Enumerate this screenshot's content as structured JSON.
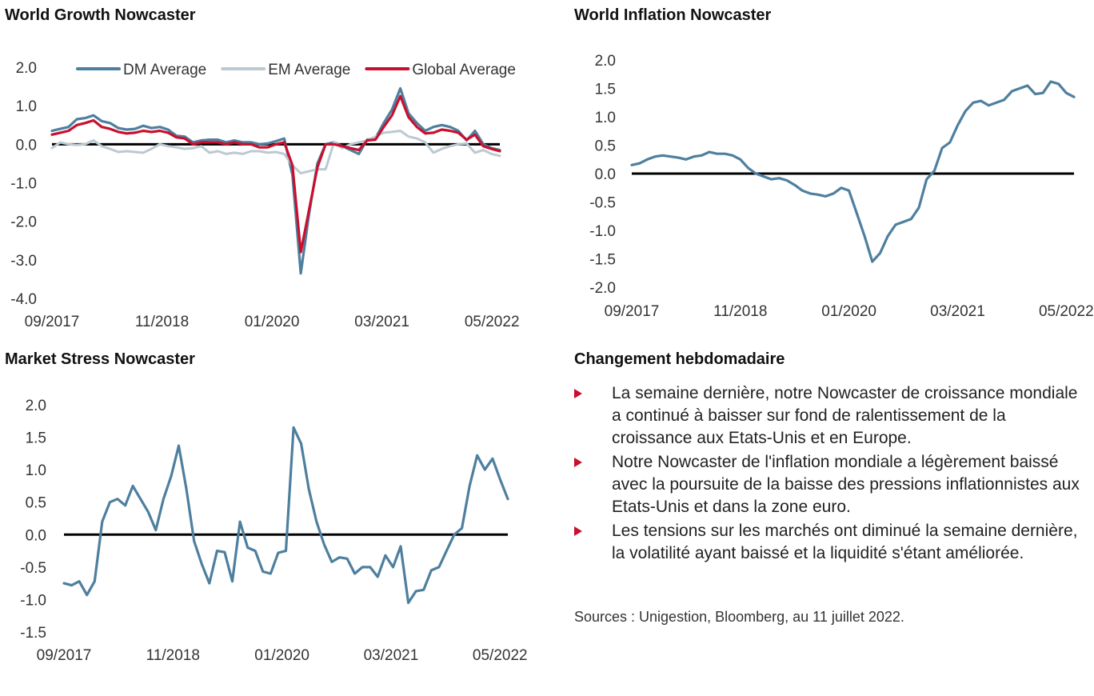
{
  "colors": {
    "dm": "#4e7f9e",
    "em": "#bcc9d0",
    "global": "#c8102e",
    "zero": "#000000",
    "bullet": "#c8102e"
  },
  "panels": {
    "growth": {
      "title": "World Growth Nowcaster"
    },
    "inflation": {
      "title": "World Inflation Nowcaster"
    },
    "stress": {
      "title": "Market Stress Nowcaster"
    },
    "commentary": {
      "title": "Changement hebdomadaire",
      "bullets": [
        "La semaine dernière, notre Nowcaster de croissance mondiale a continué à baisser sur fond de ralentissement de la croissance aux Etats-Unis et en Europe.",
        "Notre Nowcaster de l'inflation mondiale a légèrement baissé avec la poursuite de la baisse des pressions inflationnistes aux Etats-Unis et dans la zone euro.",
        "Les tensions sur les marchés ont diminué la semaine dernière, la volatilité ayant baissé et la liquidité s'étant améliorée."
      ],
      "sources": "Sources : Unigestion, Bloomberg, au 11 juillet 2022."
    }
  },
  "chart_data": [
    {
      "id": "growth",
      "type": "line",
      "title": "World Growth Nowcaster",
      "ylim": [
        -4.0,
        2.0
      ],
      "yticks": [
        "2.0",
        "1.0",
        "0.0",
        "-1.0",
        "-2.0",
        "-3.0",
        "-4.0"
      ],
      "ytick_values": [
        2,
        1,
        0,
        -1,
        -2,
        -3,
        -4
      ],
      "xticks": [
        "09/2017",
        "11/2018",
        "01/2020",
        "03/2021",
        "05/2022"
      ],
      "xtick_months": [
        0,
        14,
        28,
        42,
        56
      ],
      "x_range_months": [
        0,
        57
      ],
      "legend_position": "top",
      "zero_line": true,
      "series": [
        {
          "name": "DM Average",
          "color_key": "dm",
          "values": [
            0.35,
            0.4,
            0.45,
            0.65,
            0.68,
            0.75,
            0.6,
            0.55,
            0.42,
            0.38,
            0.4,
            0.48,
            0.42,
            0.45,
            0.38,
            0.22,
            0.2,
            0.05,
            0.1,
            0.12,
            0.12,
            0.05,
            0.1,
            0.05,
            0.05,
            0.0,
            0.02,
            0.08,
            0.15,
            -0.8,
            -3.35,
            -1.8,
            -0.5,
            0.0,
            0.05,
            -0.05,
            -0.15,
            -0.25,
            0.12,
            0.15,
            0.55,
            0.9,
            1.45,
            0.8,
            0.55,
            0.35,
            0.45,
            0.5,
            0.45,
            0.35,
            0.1,
            0.35,
            0.0,
            -0.1,
            -0.15
          ]
        },
        {
          "name": "EM Average",
          "color_key": "em",
          "values": [
            -0.1,
            0.05,
            0.0,
            -0.02,
            0.0,
            0.1,
            -0.05,
            -0.12,
            -0.2,
            -0.18,
            -0.2,
            -0.22,
            -0.12,
            0.0,
            -0.05,
            -0.08,
            -0.12,
            -0.1,
            -0.05,
            -0.22,
            -0.18,
            -0.25,
            -0.22,
            -0.25,
            -0.18,
            -0.18,
            -0.22,
            -0.2,
            -0.25,
            -0.55,
            -0.75,
            -0.7,
            -0.65,
            -0.65,
            0.05,
            -0.1,
            0.0,
            0.05,
            0.1,
            0.2,
            0.3,
            0.32,
            0.35,
            0.2,
            0.15,
            0.05,
            -0.22,
            -0.12,
            -0.05,
            0.0,
            0.02,
            -0.22,
            -0.15,
            -0.25,
            -0.3
          ]
        },
        {
          "name": "Global Average",
          "color_key": "global",
          "values": [
            0.25,
            0.3,
            0.35,
            0.5,
            0.55,
            0.62,
            0.45,
            0.4,
            0.32,
            0.28,
            0.3,
            0.35,
            0.32,
            0.35,
            0.3,
            0.18,
            0.15,
            0.0,
            0.05,
            0.05,
            0.05,
            0.0,
            0.05,
            0.0,
            0.0,
            -0.08,
            -0.08,
            0.0,
            0.05,
            -0.55,
            -2.8,
            -1.7,
            -0.6,
            0.0,
            0.0,
            -0.05,
            -0.1,
            -0.15,
            0.1,
            0.12,
            0.45,
            0.75,
            1.25,
            0.7,
            0.45,
            0.28,
            0.3,
            0.38,
            0.35,
            0.3,
            0.12,
            0.25,
            -0.05,
            -0.12,
            -0.18
          ]
        }
      ]
    },
    {
      "id": "inflation",
      "type": "line",
      "title": "World Inflation Nowcaster",
      "ylim": [
        -2.0,
        2.0
      ],
      "yticks": [
        "2.0",
        "1.5",
        "1.0",
        "0.5",
        "0.0",
        "-0.5",
        "-1.0",
        "-1.5",
        "-2.0"
      ],
      "ytick_values": [
        2.0,
        1.5,
        1.0,
        0.5,
        0.0,
        -0.5,
        -1.0,
        -1.5,
        -2.0
      ],
      "xticks": [
        "09/2017",
        "11/2018",
        "01/2020",
        "03/2021",
        "05/2022"
      ],
      "xtick_months": [
        0,
        14,
        28,
        42,
        56
      ],
      "x_range_months": [
        0,
        57
      ],
      "zero_line": true,
      "series": [
        {
          "name": "",
          "color_key": "dm",
          "values": [
            0.15,
            0.18,
            0.25,
            0.3,
            0.32,
            0.3,
            0.28,
            0.25,
            0.3,
            0.32,
            0.38,
            0.35,
            0.35,
            0.32,
            0.25,
            0.1,
            0.0,
            -0.05,
            -0.1,
            -0.08,
            -0.12,
            -0.2,
            -0.3,
            -0.35,
            -0.37,
            -0.4,
            -0.35,
            -0.25,
            -0.3,
            -0.7,
            -1.1,
            -1.55,
            -1.4,
            -1.1,
            -0.9,
            -0.85,
            -0.8,
            -0.6,
            -0.1,
            0.05,
            0.45,
            0.55,
            0.85,
            1.1,
            1.25,
            1.28,
            1.2,
            1.25,
            1.3,
            1.45,
            1.5,
            1.55,
            1.4,
            1.42,
            1.62,
            1.58,
            1.42,
            1.35
          ]
        }
      ]
    },
    {
      "id": "stress",
      "type": "line",
      "title": "Market Stress Nowcaster",
      "ylim": [
        -1.5,
        2.0
      ],
      "yticks": [
        "2.0",
        "1.5",
        "1.0",
        "0.5",
        "0.0",
        "-0.5",
        "-1.0",
        "-1.5"
      ],
      "ytick_values": [
        2.0,
        1.5,
        1.0,
        0.5,
        0.0,
        -0.5,
        -1.0,
        -1.5
      ],
      "xticks": [
        "09/2017",
        "11/2018",
        "01/2020",
        "03/2021",
        "05/2022"
      ],
      "xtick_months": [
        0,
        14,
        28,
        42,
        56
      ],
      "x_range_months": [
        0,
        57
      ],
      "zero_line": true,
      "series": [
        {
          "name": "",
          "color_key": "dm",
          "values": [
            -0.75,
            -0.78,
            -0.72,
            -0.93,
            -0.72,
            0.2,
            0.5,
            0.55,
            0.45,
            0.75,
            0.55,
            0.35,
            0.07,
            0.55,
            0.9,
            1.37,
            0.7,
            -0.1,
            -0.45,
            -0.75,
            -0.25,
            -0.27,
            -0.72,
            0.2,
            -0.2,
            -0.25,
            -0.57,
            -0.6,
            -0.28,
            -0.25,
            1.65,
            1.4,
            0.7,
            0.2,
            -0.15,
            -0.42,
            -0.35,
            -0.37,
            -0.6,
            -0.5,
            -0.5,
            -0.65,
            -0.32,
            -0.5,
            -0.18,
            -1.05,
            -0.87,
            -0.85,
            -0.55,
            -0.5,
            -0.25,
            0.0,
            0.1,
            0.75,
            1.22,
            1.0,
            1.17,
            0.85,
            0.55
          ]
        }
      ]
    }
  ]
}
